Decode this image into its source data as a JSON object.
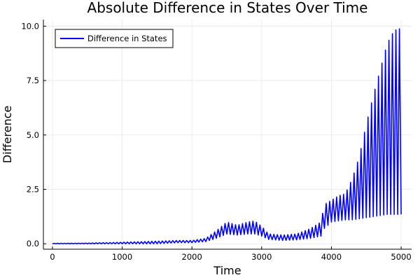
{
  "chart_data": {
    "type": "line",
    "title": "Absolute Difference in States Over Time",
    "xlabel": "Time",
    "ylabel": "Difference",
    "xlim": [
      -130,
      5150
    ],
    "ylim": [
      -0.25,
      10.3
    ],
    "xticks": [
      0,
      1000,
      2000,
      3000,
      4000,
      5000
    ],
    "xtick_labels": [
      "0",
      "1000",
      "2000",
      "3000",
      "4000",
      "5000"
    ],
    "yticks": [
      0,
      2.5,
      5,
      7.5,
      10
    ],
    "ytick_labels": [
      "0.0",
      "2.5",
      "5.0",
      "7.5",
      "10.0"
    ],
    "grid": true,
    "legend_position": "top-left",
    "series": [
      {
        "name": "Difference in States",
        "color": "#0000ff",
        "oscillation_period": 50,
        "x": [
          0,
          500,
          1000,
          1500,
          1800,
          2000,
          2200,
          2350,
          2500,
          2650,
          2800,
          2900,
          3000,
          3100,
          3300,
          3500,
          3700,
          3850,
          3900,
          4000,
          4100,
          4200,
          4300,
          4400,
          4500,
          4600,
          4700,
          4800,
          4900,
          5000
        ],
        "upper": [
          0.02,
          0.03,
          0.07,
          0.12,
          0.15,
          0.15,
          0.25,
          0.6,
          1.0,
          0.85,
          1.0,
          1.05,
          0.8,
          0.45,
          0.4,
          0.45,
          0.7,
          1.0,
          1.8,
          2.0,
          2.2,
          2.3,
          3.0,
          4.0,
          5.5,
          6.8,
          8.0,
          9.2,
          9.8,
          9.9
        ],
        "lower": [
          0.0,
          0.0,
          0.0,
          0.0,
          0.05,
          0.05,
          0.1,
          0.25,
          0.45,
          0.4,
          0.45,
          0.45,
          0.35,
          0.2,
          0.15,
          0.18,
          0.25,
          0.35,
          0.7,
          1.0,
          1.05,
          1.1,
          1.1,
          1.15,
          1.2,
          1.25,
          1.3,
          1.35,
          1.35,
          1.35
        ]
      }
    ]
  }
}
